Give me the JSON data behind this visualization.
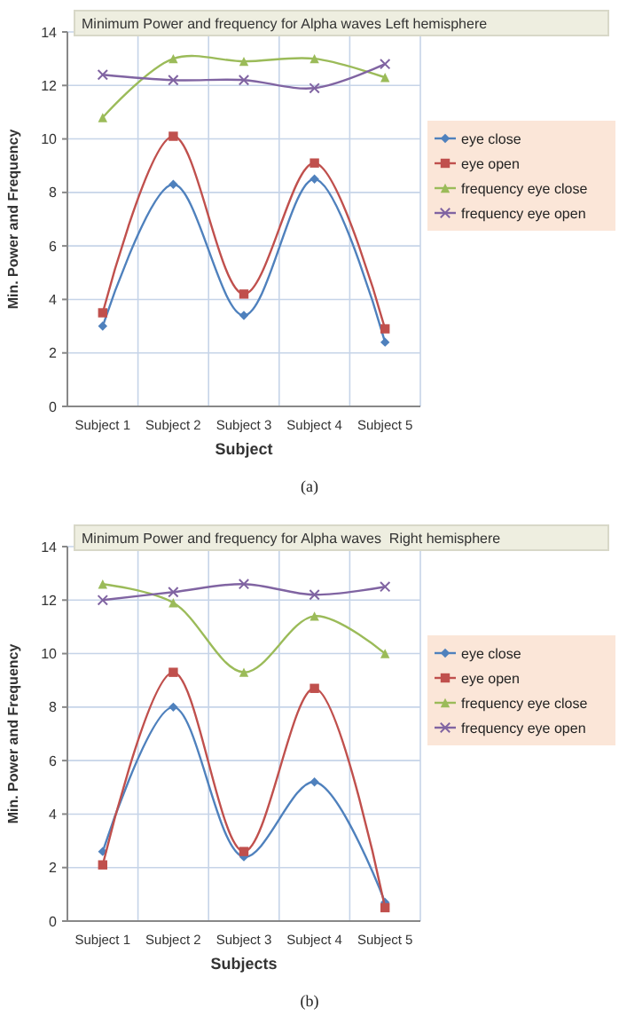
{
  "chart_data": [
    {
      "type": "line",
      "title": "Minimum Power and frequency for Alpha waves Left hemisphere",
      "xlabel": "Subject",
      "ylabel": "Min. Power and Frequency",
      "categories": [
        "Subject 1",
        "Subject 2",
        "Subject 3",
        "Subject 4",
        "Subject 5"
      ],
      "ylim": [
        0,
        14
      ],
      "yticks": [
        0,
        2,
        4,
        6,
        8,
        10,
        12,
        14
      ],
      "grid": true,
      "legend": "right",
      "annotations": [
        "(a)"
      ],
      "series": [
        {
          "name": "eye close",
          "color": "#4f81bd",
          "marker": "diamond",
          "values": [
            3.0,
            8.3,
            3.4,
            8.5,
            2.4
          ]
        },
        {
          "name": "eye open",
          "color": "#c0504d",
          "marker": "square",
          "values": [
            3.5,
            10.1,
            4.2,
            9.1,
            2.9
          ]
        },
        {
          "name": "frequency eye close",
          "color": "#9bbb59",
          "marker": "triangle",
          "values": [
            10.8,
            13.0,
            12.9,
            13.0,
            12.3
          ]
        },
        {
          "name": "frequency eye open",
          "color": "#8064a2",
          "marker": "cross",
          "values": [
            12.4,
            12.2,
            12.2,
            11.9,
            12.8
          ]
        }
      ]
    },
    {
      "type": "line",
      "title": "Minimum Power and frequency for Alpha waves  Right hemisphere",
      "xlabel": "Subjects",
      "ylabel": "Min. Power and Frequency",
      "categories": [
        "Subject 1",
        "Subject 2",
        "Subject 3",
        "Subject 4",
        "Subject 5"
      ],
      "ylim": [
        0,
        14
      ],
      "yticks": [
        0,
        2,
        4,
        6,
        8,
        10,
        12,
        14
      ],
      "grid": true,
      "legend": "right",
      "annotations": [
        "(b)"
      ],
      "series": [
        {
          "name": "eye close",
          "color": "#4f81bd",
          "marker": "diamond",
          "values": [
            2.6,
            8.0,
            2.4,
            5.2,
            0.7
          ]
        },
        {
          "name": "eye open",
          "color": "#c0504d",
          "marker": "square",
          "values": [
            2.1,
            9.3,
            2.6,
            8.7,
            0.5
          ]
        },
        {
          "name": "frequency eye close",
          "color": "#9bbb59",
          "marker": "triangle",
          "values": [
            12.6,
            11.9,
            9.3,
            11.4,
            10.0
          ]
        },
        {
          "name": "frequency eye open",
          "color": "#8064a2",
          "marker": "cross",
          "values": [
            12.0,
            12.3,
            12.6,
            12.2,
            12.5
          ]
        }
      ]
    }
  ]
}
